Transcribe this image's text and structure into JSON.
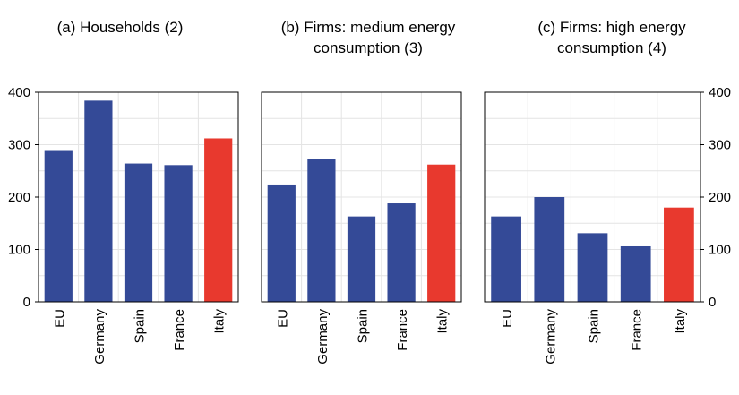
{
  "chart_data": [
    {
      "type": "bar",
      "title_lines": [
        "(a) Households (2)"
      ],
      "categories": [
        "EU",
        "Germany",
        "Spain",
        "France",
        "Italy"
      ],
      "values": [
        288,
        384,
        264,
        261,
        312
      ],
      "colors": [
        "#344a97",
        "#344a97",
        "#344a97",
        "#344a97",
        "#e8392e"
      ],
      "ylim": [
        0,
        400
      ],
      "yticks": [
        "0",
        "100",
        "200",
        "300",
        "400"
      ],
      "grid": true
    },
    {
      "type": "bar",
      "title_lines": [
        "(b) Firms: medium energy",
        "consumption (3)"
      ],
      "categories": [
        "EU",
        "Germany",
        "Spain",
        "France",
        "Italy"
      ],
      "values": [
        224,
        273,
        163,
        188,
        262
      ],
      "colors": [
        "#344a97",
        "#344a97",
        "#344a97",
        "#344a97",
        "#e8392e"
      ],
      "ylim": [
        0,
        400
      ],
      "grid": true
    },
    {
      "type": "bar",
      "title_lines": [
        "(c) Firms: high energy",
        "consumption (4)"
      ],
      "categories": [
        "EU",
        "Germany",
        "Spain",
        "France",
        "Italy"
      ],
      "values": [
        163,
        200,
        131,
        106,
        180
      ],
      "colors": [
        "#344a97",
        "#344a97",
        "#344a97",
        "#344a97",
        "#e8392e"
      ],
      "ylim": [
        0,
        400
      ],
      "yticks": [
        "0",
        "100",
        "200",
        "300",
        "400"
      ],
      "grid": true
    }
  ]
}
